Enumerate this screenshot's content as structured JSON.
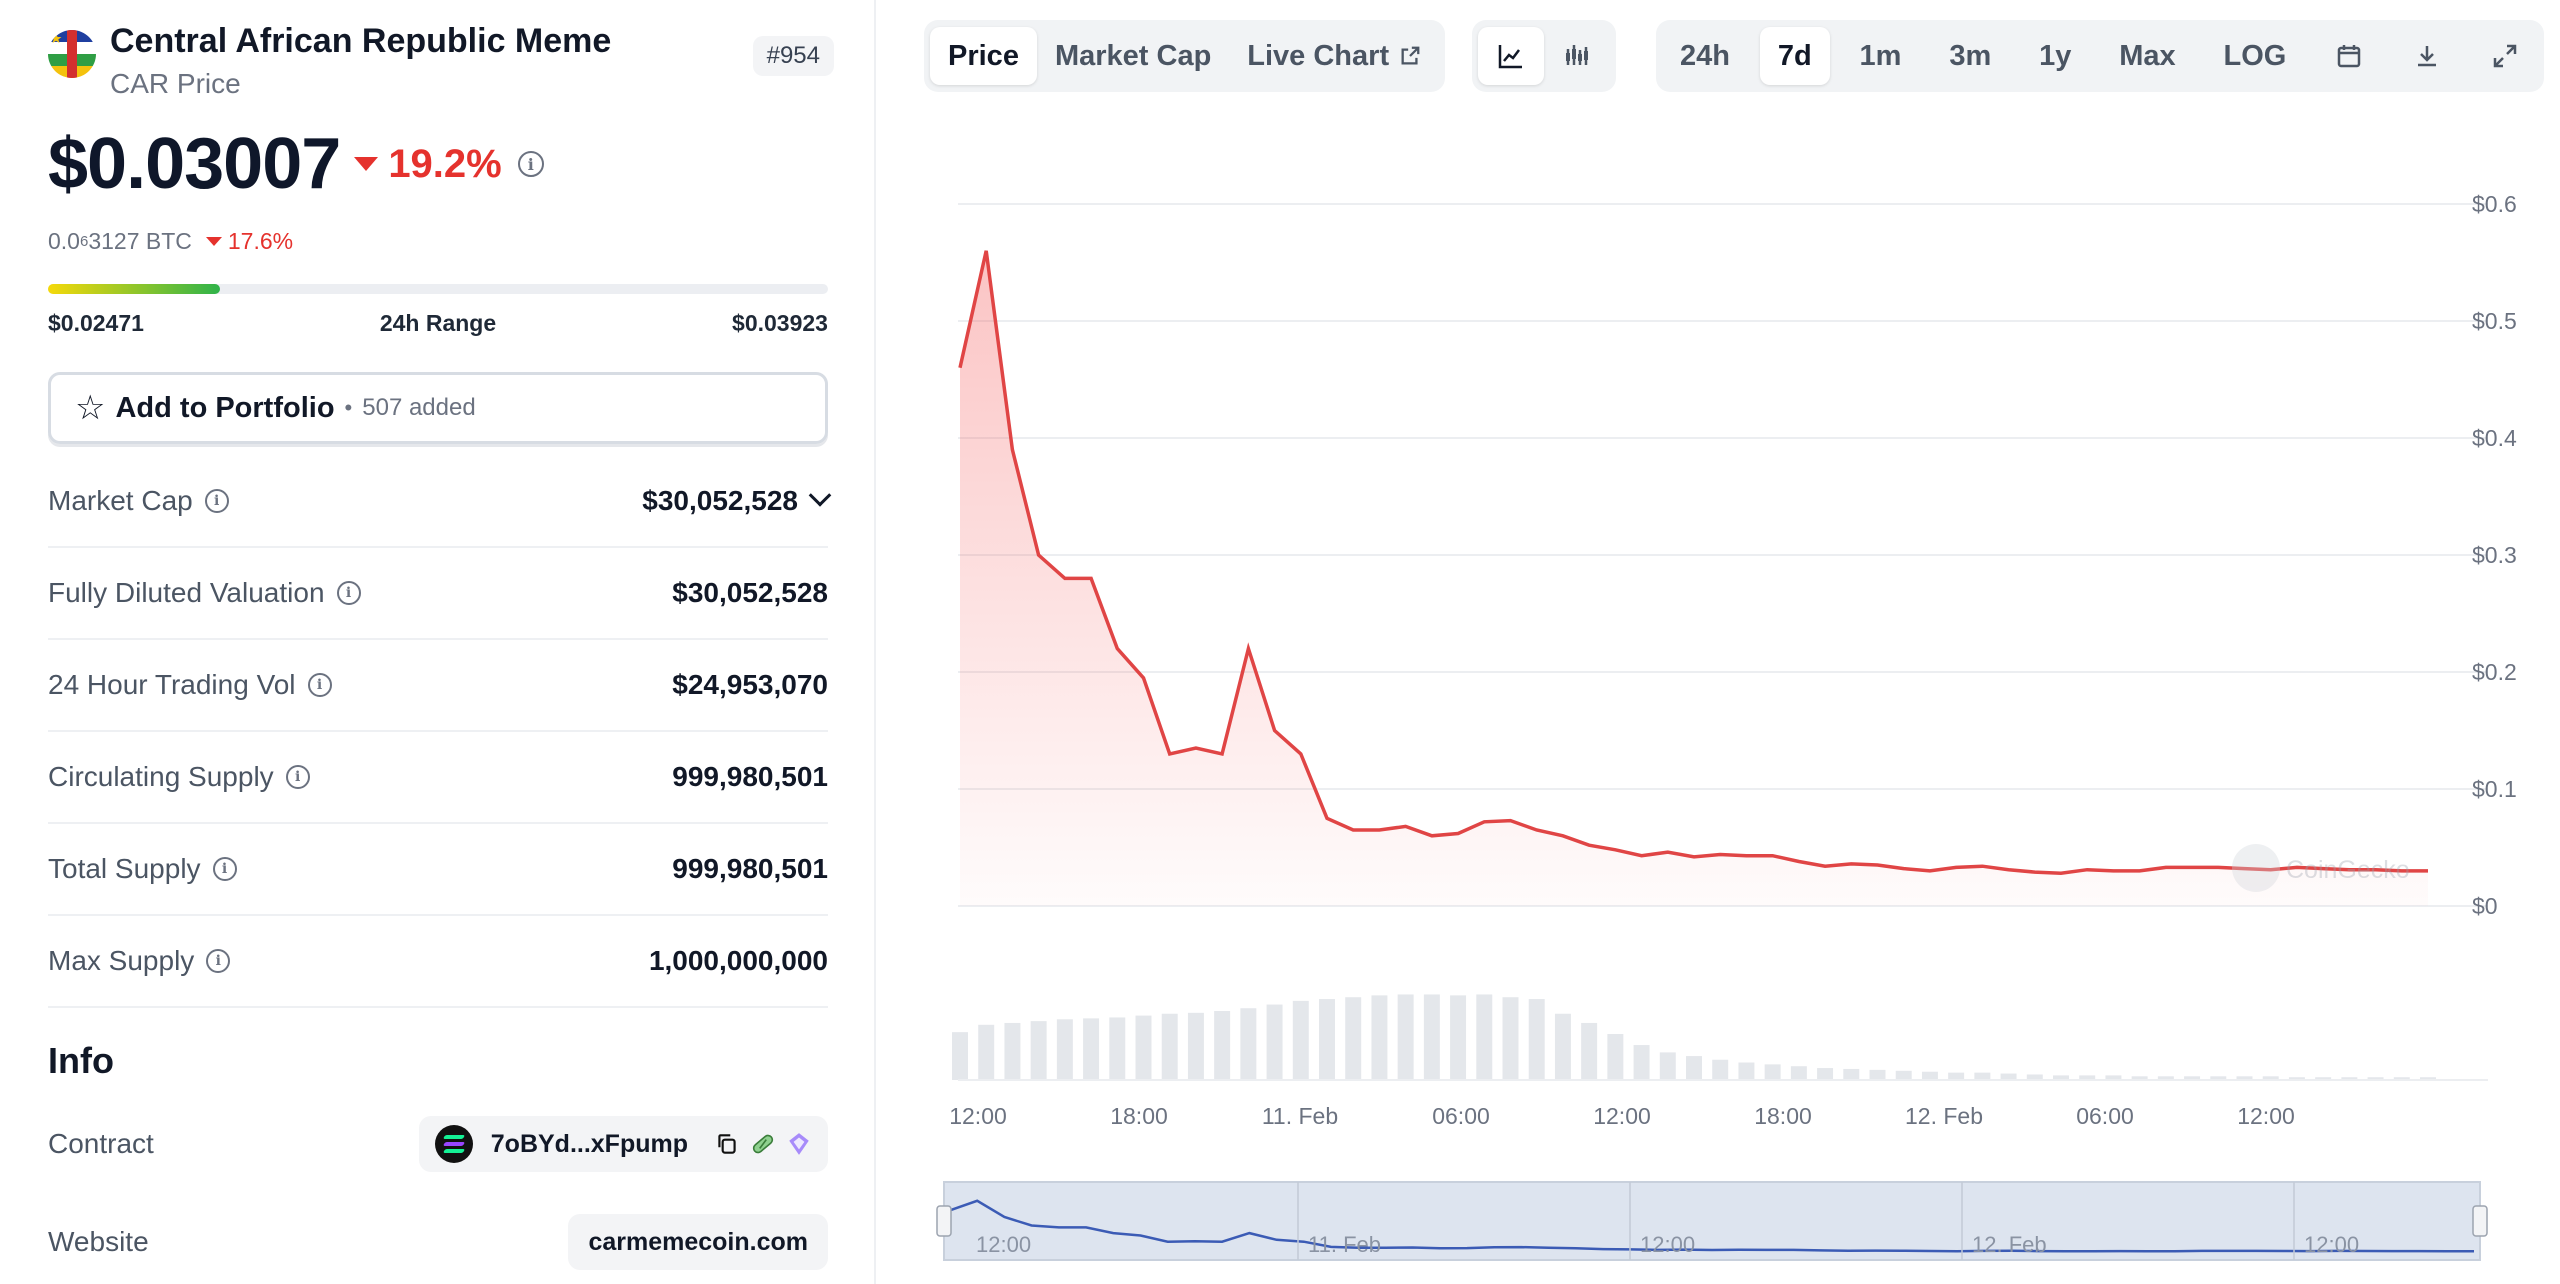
{
  "coin": {
    "name": "Central African Republic Meme",
    "subtitle": "CAR Price",
    "rank": "#954",
    "price": "$0.03007",
    "change_24h": "19.2%",
    "btc_price_prefix": "0.0",
    "btc_price_sub": "6",
    "btc_price_suffix": "3127 BTC",
    "btc_change": "17.6%",
    "range_low": "$0.02471",
    "range_label": "24h Range",
    "range_high": "$0.03923",
    "range_position": 0.22
  },
  "portfolio": {
    "label": "Add to Portfolio",
    "count": "507 added"
  },
  "stats": [
    {
      "label": "Market Cap",
      "value": "$30,052,528",
      "has_dropdown": true
    },
    {
      "label": "Fully Diluted Valuation",
      "value": "$30,052,528"
    },
    {
      "label": "24 Hour Trading Vol",
      "value": "$24,953,070"
    },
    {
      "label": "Circulating Supply",
      "value": "999,980,501"
    },
    {
      "label": "Total Supply",
      "value": "999,980,501"
    },
    {
      "label": "Max Supply",
      "value": "1,000,000,000"
    }
  ],
  "info": {
    "title": "Info",
    "contract_label": "Contract",
    "contract_value": "7oBYd...xFpump",
    "website_label": "Website",
    "website_value": "carmemecoin.com"
  },
  "toolbar": {
    "tabs": [
      "Price",
      "Market Cap",
      "Live Chart"
    ],
    "active_tab": "Price",
    "ranges": [
      "24h",
      "7d",
      "1m",
      "3m",
      "1y",
      "Max",
      "LOG"
    ],
    "active_range": "7d"
  },
  "colors": {
    "down": "#e5322d",
    "line": "#e04545",
    "navigator_line": "#3b5bb5"
  },
  "watermark": "CoinGecko",
  "chart_data": {
    "type": "area",
    "title": "",
    "y_ticks": [
      "$0",
      "$0.1",
      "$0.2",
      "$0.3",
      "$0.4",
      "$0.5",
      "$0.6"
    ],
    "ylim": [
      0,
      0.6
    ],
    "x_ticks": [
      "12:00",
      "18:00",
      "11. Feb",
      "06:00",
      "12:00",
      "18:00",
      "12. Feb",
      "06:00",
      "12:00"
    ],
    "navigator_ticks": [
      "12:00",
      "11. Feb",
      "12:00",
      "12. Feb",
      "12:00"
    ],
    "price": [
      0.46,
      0.56,
      0.39,
      0.3,
      0.28,
      0.28,
      0.22,
      0.195,
      0.13,
      0.135,
      0.13,
      0.22,
      0.15,
      0.13,
      0.075,
      0.065,
      0.065,
      0.068,
      0.06,
      0.062,
      0.072,
      0.073,
      0.065,
      0.06,
      0.052,
      0.048,
      0.043,
      0.046,
      0.042,
      0.044,
      0.043,
      0.043,
      0.038,
      0.034,
      0.036,
      0.035,
      0.032,
      0.03,
      0.033,
      0.034,
      0.031,
      0.029,
      0.028,
      0.031,
      0.03,
      0.03,
      0.033,
      0.033,
      0.033,
      0.032,
      0.031,
      0.033,
      0.032,
      0.031,
      0.031,
      0.03,
      0.03
    ],
    "volume": [
      0.52,
      0.6,
      0.62,
      0.64,
      0.66,
      0.67,
      0.68,
      0.7,
      0.72,
      0.73,
      0.75,
      0.78,
      0.82,
      0.86,
      0.88,
      0.9,
      0.92,
      0.93,
      0.93,
      0.92,
      0.93,
      0.9,
      0.88,
      0.72,
      0.62,
      0.5,
      0.38,
      0.3,
      0.26,
      0.22,
      0.19,
      0.17,
      0.15,
      0.13,
      0.12,
      0.11,
      0.1,
      0.09,
      0.08,
      0.08,
      0.07,
      0.06,
      0.05,
      0.05,
      0.05,
      0.04,
      0.04,
      0.04,
      0.04,
      0.04,
      0.04,
      0.03,
      0.03,
      0.03,
      0.03,
      0.03,
      0.03
    ]
  }
}
